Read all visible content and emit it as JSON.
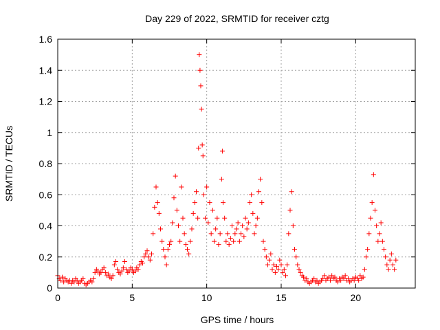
{
  "chart_data": {
    "type": "scatter",
    "title": "Day 229 of 2022, SRMTID for receiver cztg",
    "xlabel": "GPS time / hours",
    "ylabel": "SRMTID / TECUs",
    "xlim": [
      0,
      24
    ],
    "ylim": [
      0,
      1.6
    ],
    "x_ticks": [
      0,
      5,
      10,
      15,
      20
    ],
    "x_tick_labels": [
      "0",
      "5",
      "10",
      "15",
      "20"
    ],
    "y_ticks": [
      0,
      0.2,
      0.4,
      0.6,
      0.8,
      1,
      1.2,
      1.4,
      1.6
    ],
    "y_tick_labels": [
      "0",
      "0.2",
      "0.4",
      "0.6",
      "0.8",
      "1",
      "1.2",
      "1.4",
      "1.6"
    ],
    "grid": true,
    "marker": "+",
    "color": "#ff0000",
    "series": [
      {
        "name": "SRMTID",
        "points": [
          [
            0.0,
            0.08
          ],
          [
            0.1,
            0.06
          ],
          [
            0.2,
            0.05
          ],
          [
            0.3,
            0.07
          ],
          [
            0.4,
            0.04
          ],
          [
            0.5,
            0.06
          ],
          [
            0.6,
            0.05
          ],
          [
            0.7,
            0.04
          ],
          [
            0.8,
            0.05
          ],
          [
            0.9,
            0.03
          ],
          [
            1.0,
            0.05
          ],
          [
            1.1,
            0.04
          ],
          [
            1.2,
            0.06
          ],
          [
            1.3,
            0.05
          ],
          [
            1.4,
            0.03
          ],
          [
            1.5,
            0.04
          ],
          [
            1.6,
            0.05
          ],
          [
            1.7,
            0.06
          ],
          [
            1.8,
            0.03
          ],
          [
            1.9,
            0.02
          ],
          [
            2.0,
            0.03
          ],
          [
            2.1,
            0.04
          ],
          [
            2.2,
            0.05
          ],
          [
            2.3,
            0.04
          ],
          [
            2.4,
            0.06
          ],
          [
            2.5,
            0.1
          ],
          [
            2.6,
            0.12
          ],
          [
            2.7,
            0.11
          ],
          [
            2.8,
            0.09
          ],
          [
            2.9,
            0.1
          ],
          [
            3.0,
            0.12
          ],
          [
            3.1,
            0.13
          ],
          [
            3.2,
            0.1
          ],
          [
            3.3,
            0.08
          ],
          [
            3.4,
            0.09
          ],
          [
            3.5,
            0.07
          ],
          [
            3.6,
            0.06
          ],
          [
            3.7,
            0.08
          ],
          [
            3.8,
            0.15
          ],
          [
            3.9,
            0.17
          ],
          [
            4.0,
            0.12
          ],
          [
            4.1,
            0.1
          ],
          [
            4.2,
            0.09
          ],
          [
            4.3,
            0.11
          ],
          [
            4.4,
            0.13
          ],
          [
            4.5,
            0.17
          ],
          [
            4.6,
            0.12
          ],
          [
            4.7,
            0.1
          ],
          [
            4.8,
            0.11
          ],
          [
            4.9,
            0.13
          ],
          [
            5.0,
            0.12
          ],
          [
            5.1,
            0.1
          ],
          [
            5.2,
            0.11
          ],
          [
            5.3,
            0.13
          ],
          [
            5.4,
            0.12
          ],
          [
            5.5,
            0.15
          ],
          [
            5.6,
            0.17
          ],
          [
            5.7,
            0.16
          ],
          [
            5.8,
            0.2
          ],
          [
            5.9,
            0.22
          ],
          [
            6.0,
            0.24
          ],
          [
            6.1,
            0.2
          ],
          [
            6.2,
            0.18
          ],
          [
            6.3,
            0.22
          ],
          [
            6.4,
            0.35
          ],
          [
            6.5,
            0.52
          ],
          [
            6.6,
            0.65
          ],
          [
            6.7,
            0.55
          ],
          [
            6.8,
            0.48
          ],
          [
            6.9,
            0.38
          ],
          [
            7.0,
            0.3
          ],
          [
            7.1,
            0.25
          ],
          [
            7.2,
            0.2
          ],
          [
            7.3,
            0.15
          ],
          [
            7.4,
            0.25
          ],
          [
            7.5,
            0.28
          ],
          [
            7.6,
            0.3
          ],
          [
            7.7,
            0.42
          ],
          [
            7.8,
            0.58
          ],
          [
            7.9,
            0.72
          ],
          [
            8.0,
            0.5
          ],
          [
            8.1,
            0.4
          ],
          [
            8.2,
            0.3
          ],
          [
            8.3,
            0.65
          ],
          [
            8.4,
            0.45
          ],
          [
            8.5,
            0.35
          ],
          [
            8.6,
            0.28
          ],
          [
            8.7,
            0.25
          ],
          [
            8.8,
            0.22
          ],
          [
            8.9,
            0.3
          ],
          [
            9.0,
            0.38
          ],
          [
            9.1,
            0.48
          ],
          [
            9.2,
            0.55
          ],
          [
            9.3,
            0.62
          ],
          [
            9.4,
            0.45
          ],
          [
            9.45,
            0.9
          ],
          [
            9.5,
            1.5
          ],
          [
            9.55,
            1.4
          ],
          [
            9.6,
            1.3
          ],
          [
            9.65,
            1.15
          ],
          [
            9.7,
            0.92
          ],
          [
            9.75,
            0.85
          ],
          [
            9.8,
            0.6
          ],
          [
            9.9,
            0.45
          ],
          [
            10.0,
            0.65
          ],
          [
            10.1,
            0.42
          ],
          [
            10.2,
            0.55
          ],
          [
            10.3,
            0.35
          ],
          [
            10.4,
            0.5
          ],
          [
            10.5,
            0.3
          ],
          [
            10.6,
            0.38
          ],
          [
            10.7,
            0.45
          ],
          [
            10.8,
            0.28
          ],
          [
            10.9,
            0.35
          ],
          [
            11.0,
            0.7
          ],
          [
            11.05,
            0.88
          ],
          [
            11.1,
            0.55
          ],
          [
            11.2,
            0.45
          ],
          [
            11.3,
            0.3
          ],
          [
            11.4,
            0.35
          ],
          [
            11.5,
            0.28
          ],
          [
            11.6,
            0.32
          ],
          [
            11.7,
            0.4
          ],
          [
            11.8,
            0.3
          ],
          [
            11.9,
            0.35
          ],
          [
            12.0,
            0.38
          ],
          [
            12.1,
            0.42
          ],
          [
            12.2,
            0.3
          ],
          [
            12.3,
            0.35
          ],
          [
            12.4,
            0.4
          ],
          [
            12.5,
            0.33
          ],
          [
            12.6,
            0.45
          ],
          [
            12.7,
            0.38
          ],
          [
            12.8,
            0.42
          ],
          [
            12.9,
            0.55
          ],
          [
            13.0,
            0.6
          ],
          [
            13.1,
            0.48
          ],
          [
            13.2,
            0.35
          ],
          [
            13.3,
            0.4
          ],
          [
            13.4,
            0.45
          ],
          [
            13.5,
            0.62
          ],
          [
            13.6,
            0.7
          ],
          [
            13.7,
            0.55
          ],
          [
            13.8,
            0.3
          ],
          [
            13.9,
            0.25
          ],
          [
            14.0,
            0.2
          ],
          [
            14.1,
            0.15
          ],
          [
            14.2,
            0.18
          ],
          [
            14.3,
            0.22
          ],
          [
            14.4,
            0.12
          ],
          [
            14.5,
            0.15
          ],
          [
            14.6,
            0.1
          ],
          [
            14.7,
            0.14
          ],
          [
            14.8,
            0.12
          ],
          [
            14.9,
            0.18
          ],
          [
            15.0,
            0.15
          ],
          [
            15.1,
            0.1
          ],
          [
            15.2,
            0.12
          ],
          [
            15.3,
            0.08
          ],
          [
            15.4,
            0.15
          ],
          [
            15.5,
            0.35
          ],
          [
            15.6,
            0.5
          ],
          [
            15.7,
            0.62
          ],
          [
            15.8,
            0.4
          ],
          [
            15.9,
            0.25
          ],
          [
            16.0,
            0.2
          ],
          [
            16.1,
            0.15
          ],
          [
            16.2,
            0.12
          ],
          [
            16.3,
            0.1
          ],
          [
            16.4,
            0.08
          ],
          [
            16.5,
            0.07
          ],
          [
            16.6,
            0.05
          ],
          [
            16.7,
            0.06
          ],
          [
            16.8,
            0.04
          ],
          [
            16.9,
            0.03
          ],
          [
            17.0,
            0.04
          ],
          [
            17.1,
            0.05
          ],
          [
            17.2,
            0.06
          ],
          [
            17.3,
            0.04
          ],
          [
            17.4,
            0.05
          ],
          [
            17.5,
            0.03
          ],
          [
            17.6,
            0.04
          ],
          [
            17.7,
            0.05
          ],
          [
            17.8,
            0.06
          ],
          [
            17.9,
            0.08
          ],
          [
            18.0,
            0.05
          ],
          [
            18.1,
            0.06
          ],
          [
            18.2,
            0.07
          ],
          [
            18.3,
            0.05
          ],
          [
            18.4,
            0.08
          ],
          [
            18.5,
            0.06
          ],
          [
            18.6,
            0.07
          ],
          [
            18.7,
            0.05
          ],
          [
            18.8,
            0.04
          ],
          [
            18.9,
            0.06
          ],
          [
            19.0,
            0.05
          ],
          [
            19.1,
            0.07
          ],
          [
            19.2,
            0.06
          ],
          [
            19.3,
            0.08
          ],
          [
            19.4,
            0.05
          ],
          [
            19.5,
            0.06
          ],
          [
            19.6,
            0.04
          ],
          [
            19.7,
            0.05
          ],
          [
            19.8,
            0.06
          ],
          [
            19.9,
            0.05
          ],
          [
            20.0,
            0.07
          ],
          [
            20.1,
            0.06
          ],
          [
            20.2,
            0.05
          ],
          [
            20.3,
            0.08
          ],
          [
            20.4,
            0.06
          ],
          [
            20.5,
            0.07
          ],
          [
            20.6,
            0.12
          ],
          [
            20.7,
            0.2
          ],
          [
            20.8,
            0.25
          ],
          [
            20.9,
            0.35
          ],
          [
            21.0,
            0.45
          ],
          [
            21.1,
            0.55
          ],
          [
            21.2,
            0.73
          ],
          [
            21.3,
            0.5
          ],
          [
            21.4,
            0.4
          ],
          [
            21.5,
            0.3
          ],
          [
            21.6,
            0.35
          ],
          [
            21.7,
            0.42
          ],
          [
            21.8,
            0.3
          ],
          [
            21.9,
            0.25
          ],
          [
            22.0,
            0.2
          ],
          [
            22.1,
            0.15
          ],
          [
            22.2,
            0.12
          ],
          [
            22.3,
            0.18
          ],
          [
            22.4,
            0.22
          ],
          [
            22.5,
            0.15
          ],
          [
            22.6,
            0.12
          ],
          [
            22.7,
            0.18
          ]
        ]
      }
    ]
  }
}
